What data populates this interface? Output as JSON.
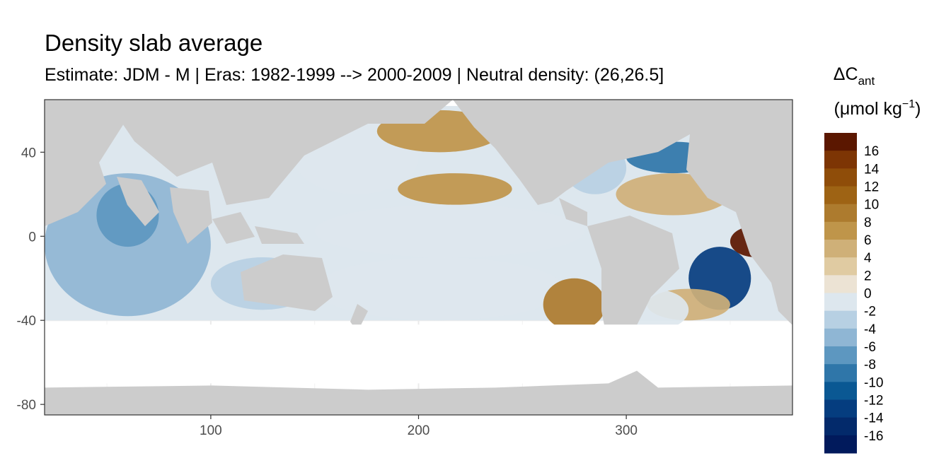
{
  "title": "Density slab average",
  "subtitle": "Estimate: JDM - M | Eras: 1982-1999 --> 2000-2009 | Neutral density: (26,26.5]",
  "chart_data": {
    "type": "heatmap",
    "title": "Density slab average",
    "subtitle": "Estimate: JDM - M | Eras: 1982-1999 --> 2000-2009 | Neutral density: (26,26.5]",
    "xlabel": "",
    "ylabel": "",
    "xlim": [
      20,
      380
    ],
    "ylim": [
      -85,
      65
    ],
    "x_ticks": [
      100,
      200,
      300
    ],
    "y_ticks": [
      40,
      0,
      -40,
      -80
    ],
    "grid": true,
    "legend": {
      "title_main": "ΔC",
      "title_sub": "ant",
      "title_units_prefix": "(μmol kg",
      "title_units_sup": "−1",
      "title_units_suffix": ")",
      "placement": "right",
      "bin_edges": [
        -18,
        -16,
        -14,
        -12,
        -10,
        -8,
        -6,
        -4,
        -2,
        0,
        2,
        4,
        6,
        8,
        10,
        12,
        14,
        16,
        18
      ],
      "labels": [
        "16",
        "14",
        "12",
        "10",
        "8",
        "6",
        "4",
        "2",
        "0",
        "-2",
        "-4",
        "-6",
        "-8",
        "-10",
        "-12",
        "-14",
        "-16"
      ],
      "colors_top_to_bottom": [
        "#5b1700",
        "#7d3504",
        "#8f4d09",
        "#9e6314",
        "#ad7b2e",
        "#bf954a",
        "#cfb078",
        "#e0cba2",
        "#ece3d4",
        "#dde7ee",
        "#b7d0e3",
        "#8fb6d4",
        "#5d97c0",
        "#2f76a9",
        "#0a5893",
        "#053d7f",
        "#032a6b",
        "#011a5c"
      ]
    },
    "land_color": "#cccccc",
    "regions": [
      {
        "lon": [
          20,
          100
        ],
        "lat": [
          -38,
          30
        ],
        "value": -5
      },
      {
        "lon": [
          45,
          75
        ],
        "lat": [
          -5,
          25
        ],
        "value": -8
      },
      {
        "lon": [
          100,
          150
        ],
        "lat": [
          -35,
          -10
        ],
        "value": -3
      },
      {
        "lon": [
          150,
          270
        ],
        "lat": [
          -40,
          -10
        ],
        "value": -2
      },
      {
        "lon": [
          150,
          280
        ],
        "lat": [
          -10,
          15
        ],
        "value": -1
      },
      {
        "lon": [
          190,
          245
        ],
        "lat": [
          15,
          30
        ],
        "value": 7
      },
      {
        "lon": [
          140,
          200
        ],
        "lat": [
          20,
          55
        ],
        "value": -1
      },
      {
        "lon": [
          180,
          240
        ],
        "lat": [
          40,
          60
        ],
        "value": 6
      },
      {
        "lon": [
          260,
          290
        ],
        "lat": [
          -45,
          -20
        ],
        "value": 8
      },
      {
        "lon": [
          270,
          300
        ],
        "lat": [
          20,
          45
        ],
        "value": -3
      },
      {
        "lon": [
          300,
          345
        ],
        "lat": [
          30,
          45
        ],
        "value": -10
      },
      {
        "lon": [
          295,
          350
        ],
        "lat": [
          10,
          30
        ],
        "value": 4
      },
      {
        "lon": [
          330,
          360
        ],
        "lat": [
          -35,
          -5
        ],
        "value": -14
      },
      {
        "lon": [
          350,
          375
        ],
        "lat": [
          -10,
          5
        ],
        "value": 17
      },
      {
        "lon": [
          310,
          350
        ],
        "lat": [
          -40,
          -25
        ],
        "value": 4
      },
      {
        "lon": [
          295,
          330
        ],
        "lat": [
          -45,
          -25
        ],
        "value": -2
      }
    ]
  }
}
